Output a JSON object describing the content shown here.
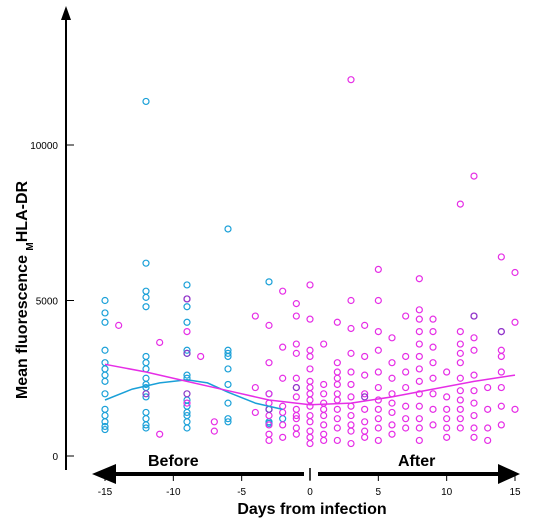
{
  "chart_data": {
    "type": "scatter",
    "xlabel": "Days from infection",
    "ylabel_main": "Mean fluorescence ",
    "ylabel_sub": "M",
    "ylabel_end": "HLA-DR",
    "x_ticks": [
      -15,
      -10,
      -5,
      0,
      5,
      10,
      15
    ],
    "y_ticks": [
      0,
      5000,
      10000
    ],
    "xlim": [
      -16.5,
      16.5
    ],
    "ylim": [
      -300,
      14500
    ],
    "grid": false,
    "annotations": {
      "before": "Before",
      "after": "After"
    },
    "colors": {
      "before": "#1aa0d8",
      "after": "#e62ee6",
      "purple": "#8a3ac8"
    },
    "series": [
      {
        "color": "#1aa0d8",
        "points": [
          [
            -15,
            5000
          ],
          [
            -15,
            4600
          ],
          [
            -15,
            4300
          ],
          [
            -15,
            3400
          ],
          [
            -15,
            3000
          ],
          [
            -15,
            2800
          ],
          [
            -15,
            2600
          ],
          [
            -15,
            2400
          ],
          [
            -15,
            2000
          ],
          [
            -15,
            1500
          ],
          [
            -15,
            1300
          ],
          [
            -15,
            1100
          ],
          [
            -15,
            950
          ],
          [
            -15,
            850
          ],
          [
            -12,
            11400
          ],
          [
            -12,
            6200
          ],
          [
            -12,
            5300
          ],
          [
            -12,
            5100
          ],
          [
            -12,
            4800
          ],
          [
            -12,
            3200
          ],
          [
            -12,
            3000
          ],
          [
            -12,
            2800
          ],
          [
            -12,
            2500
          ],
          [
            -12,
            2300
          ],
          [
            -12,
            2200
          ],
          [
            -12,
            1900
          ],
          [
            -12,
            1400
          ],
          [
            -12,
            1200
          ],
          [
            -12,
            1000
          ],
          [
            -12,
            900
          ],
          [
            -9,
            5500
          ],
          [
            -9,
            4800
          ],
          [
            -9,
            4300
          ],
          [
            -9,
            3400
          ],
          [
            -9,
            3300
          ],
          [
            -9,
            2600
          ],
          [
            -9,
            2500
          ],
          [
            -9,
            1800
          ],
          [
            -9,
            1600
          ],
          [
            -9,
            1400
          ],
          [
            -9,
            1300
          ],
          [
            -9,
            1100
          ],
          [
            -9,
            900
          ],
          [
            -6,
            7300
          ],
          [
            -6,
            3400
          ],
          [
            -6,
            3300
          ],
          [
            -6,
            3200
          ],
          [
            -6,
            2800
          ],
          [
            -6,
            2300
          ],
          [
            -6,
            1700
          ],
          [
            -6,
            1200
          ],
          [
            -6,
            1100
          ],
          [
            -3,
            5600
          ],
          [
            -3,
            2000
          ],
          [
            -3,
            1500
          ],
          [
            -3,
            1100
          ],
          [
            -3,
            1050
          ],
          [
            -2,
            1200
          ]
        ],
        "trend": [
          [
            -15,
            1800
          ],
          [
            -13,
            2150
          ],
          [
            -11,
            2350
          ],
          [
            -9,
            2450
          ],
          [
            -7.5,
            2350
          ],
          [
            -6,
            2050
          ],
          [
            -4,
            1700
          ],
          [
            -2,
            1500
          ]
        ]
      },
      {
        "color": "#e62ee6",
        "points": [
          [
            -14,
            4200
          ],
          [
            -11,
            700
          ],
          [
            -11,
            3650
          ],
          [
            -9,
            4000
          ],
          [
            -9,
            1700
          ],
          [
            -9,
            5050
          ],
          [
            -8,
            3200
          ],
          [
            -7,
            1100
          ],
          [
            -7,
            800
          ],
          [
            -4,
            4500
          ],
          [
            -4,
            1400
          ],
          [
            -4,
            2200
          ],
          [
            -3,
            4200
          ],
          [
            -3,
            3000
          ],
          [
            -3,
            2000
          ],
          [
            -3,
            1700
          ],
          [
            -3,
            1300
          ],
          [
            -3,
            1000
          ],
          [
            -3,
            700
          ],
          [
            -3,
            500
          ],
          [
            -2,
            5300
          ],
          [
            -2,
            3500
          ],
          [
            -2,
            2500
          ],
          [
            -2,
            1600
          ],
          [
            -2,
            1400
          ],
          [
            -2,
            1000
          ],
          [
            -2,
            600
          ],
          [
            -1,
            4900
          ],
          [
            -1,
            4500
          ],
          [
            -1,
            3600
          ],
          [
            -1,
            3300
          ],
          [
            -1,
            2500
          ],
          [
            -1,
            2200
          ],
          [
            -1,
            1900
          ],
          [
            -1,
            1500
          ],
          [
            -1,
            1300
          ],
          [
            -1,
            1200
          ],
          [
            -1,
            900
          ],
          [
            -1,
            700
          ],
          [
            0,
            5500
          ],
          [
            0,
            4400
          ],
          [
            0,
            3400
          ],
          [
            0,
            3200
          ],
          [
            0,
            2800
          ],
          [
            0,
            2400
          ],
          [
            0,
            2200
          ],
          [
            0,
            2000
          ],
          [
            0,
            1800
          ],
          [
            0,
            1600
          ],
          [
            0,
            1300
          ],
          [
            0,
            1100
          ],
          [
            0,
            800
          ],
          [
            0,
            600
          ],
          [
            0,
            400
          ],
          [
            1,
            3600
          ],
          [
            1,
            2300
          ],
          [
            1,
            2000
          ],
          [
            1,
            1700
          ],
          [
            1,
            1500
          ],
          [
            1,
            1300
          ],
          [
            1,
            1000
          ],
          [
            1,
            700
          ],
          [
            1,
            500
          ],
          [
            2,
            4300
          ],
          [
            2,
            3000
          ],
          [
            2,
            2700
          ],
          [
            2,
            2500
          ],
          [
            2,
            2300
          ],
          [
            2,
            2000
          ],
          [
            2,
            1800
          ],
          [
            2,
            1500
          ],
          [
            2,
            1200
          ],
          [
            2,
            900
          ],
          [
            2,
            500
          ],
          [
            3,
            12100
          ],
          [
            3,
            5000
          ],
          [
            3,
            4100
          ],
          [
            3,
            3300
          ],
          [
            3,
            2700
          ],
          [
            3,
            2300
          ],
          [
            3,
            1900
          ],
          [
            3,
            1600
          ],
          [
            3,
            1300
          ],
          [
            3,
            1000
          ],
          [
            3,
            800
          ],
          [
            3,
            400
          ],
          [
            4,
            4200
          ],
          [
            4,
            3200
          ],
          [
            4,
            2600
          ],
          [
            4,
            2000
          ],
          [
            4,
            1500
          ],
          [
            4,
            1100
          ],
          [
            4,
            800
          ],
          [
            4,
            600
          ],
          [
            5,
            6000
          ],
          [
            5,
            5000
          ],
          [
            5,
            4000
          ],
          [
            5,
            3400
          ],
          [
            5,
            2700
          ],
          [
            5,
            2200
          ],
          [
            5,
            1800
          ],
          [
            5,
            1500
          ],
          [
            5,
            1200
          ],
          [
            5,
            900
          ],
          [
            5,
            500
          ],
          [
            6,
            3800
          ],
          [
            6,
            3000
          ],
          [
            6,
            2500
          ],
          [
            6,
            2000
          ],
          [
            6,
            1700
          ],
          [
            6,
            1400
          ],
          [
            6,
            1000
          ],
          [
            6,
            700
          ],
          [
            7,
            4500
          ],
          [
            7,
            3200
          ],
          [
            7,
            2700
          ],
          [
            7,
            2200
          ],
          [
            7,
            1600
          ],
          [
            7,
            1200
          ],
          [
            7,
            900
          ],
          [
            8,
            5700
          ],
          [
            8,
            4700
          ],
          [
            8,
            4400
          ],
          [
            8,
            4000
          ],
          [
            8,
            3600
          ],
          [
            8,
            3200
          ],
          [
            8,
            2800
          ],
          [
            8,
            2400
          ],
          [
            8,
            2000
          ],
          [
            8,
            1600
          ],
          [
            8,
            1200
          ],
          [
            8,
            900
          ],
          [
            8,
            500
          ],
          [
            9,
            4400
          ],
          [
            9,
            4000
          ],
          [
            9,
            3500
          ],
          [
            9,
            3000
          ],
          [
            9,
            2500
          ],
          [
            9,
            2000
          ],
          [
            9,
            1500
          ],
          [
            9,
            1000
          ],
          [
            10,
            2700
          ],
          [
            10,
            1900
          ],
          [
            10,
            1500
          ],
          [
            10,
            1200
          ],
          [
            10,
            900
          ],
          [
            10,
            600
          ],
          [
            11,
            8100
          ],
          [
            11,
            4000
          ],
          [
            11,
            3600
          ],
          [
            11,
            3300
          ],
          [
            11,
            3000
          ],
          [
            11,
            2500
          ],
          [
            11,
            2100
          ],
          [
            11,
            1800
          ],
          [
            11,
            1500
          ],
          [
            11,
            1200
          ],
          [
            11,
            900
          ],
          [
            12,
            9000
          ],
          [
            12,
            4500
          ],
          [
            12,
            3800
          ],
          [
            12,
            3400
          ],
          [
            12,
            2600
          ],
          [
            12,
            2100
          ],
          [
            12,
            1700
          ],
          [
            12,
            1300
          ],
          [
            12,
            900
          ],
          [
            12,
            600
          ],
          [
            13,
            2200
          ],
          [
            13,
            1500
          ],
          [
            13,
            900
          ],
          [
            13,
            500
          ],
          [
            14,
            6400
          ],
          [
            14,
            4000
          ],
          [
            14,
            3400
          ],
          [
            14,
            3200
          ],
          [
            14,
            2700
          ],
          [
            14,
            2200
          ],
          [
            14,
            1600
          ],
          [
            14,
            1000
          ],
          [
            15,
            5900
          ],
          [
            15,
            4300
          ],
          [
            15,
            1500
          ]
        ],
        "trend": [
          [
            -15,
            2950
          ],
          [
            -12,
            2700
          ],
          [
            -9,
            2400
          ],
          [
            -6,
            2100
          ],
          [
            -3,
            1800
          ],
          [
            0,
            1650
          ],
          [
            3,
            1700
          ],
          [
            6,
            1900
          ],
          [
            9,
            2150
          ],
          [
            12,
            2400
          ],
          [
            15,
            2600
          ]
        ]
      },
      {
        "color": "#8a3ac8",
        "points": [
          [
            -9,
            5050
          ],
          [
            -9,
            3300
          ],
          [
            -9,
            2000
          ],
          [
            -12,
            2000
          ],
          [
            -3,
            1500
          ],
          [
            -1,
            2200
          ],
          [
            4,
            1900
          ],
          [
            12,
            4500
          ],
          [
            14,
            4000
          ]
        ]
      }
    ]
  }
}
